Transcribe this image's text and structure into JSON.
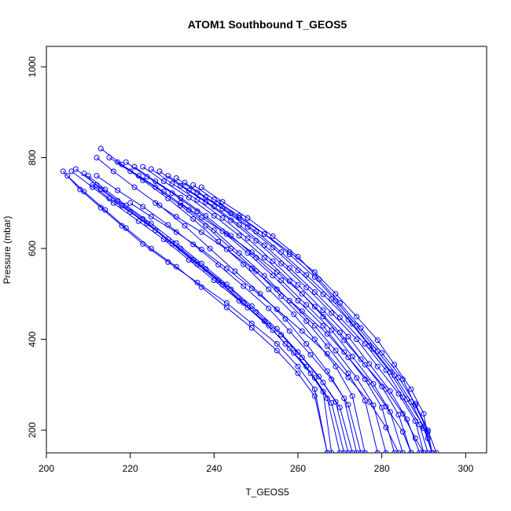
{
  "chart_data": {
    "type": "line",
    "title": "ATOM1 Southbound T_GEOS5",
    "xlabel": "T_GEOS5",
    "ylabel": "Pressure (mbar)",
    "xlim": [
      200,
      305
    ],
    "ylim": [
      1045,
      150
    ],
    "y_reversed": true,
    "x_ticks": [
      200,
      220,
      240,
      260,
      280,
      300
    ],
    "y_ticks": [
      200,
      400,
      600,
      800,
      1000
    ],
    "grid": false,
    "legend": "none",
    "color": "#0000ff",
    "marker": "open-circle",
    "series": [
      {
        "x": [
          204,
          208,
          213,
          218,
          223,
          229,
          236,
          243,
          249,
          255,
          260,
          264,
          267
        ],
        "y": [
          770,
          730,
          690,
          650,
          610,
          570,
          525,
          480,
          435,
          390,
          340,
          290,
          150
        ]
      },
      {
        "x": [
          205,
          209,
          214,
          219,
          225,
          231,
          237,
          243,
          249,
          255,
          260,
          264,
          267
        ],
        "y": [
          760,
          725,
          685,
          645,
          600,
          560,
          515,
          470,
          425,
          375,
          325,
          275,
          150
        ]
      },
      {
        "x": [
          206,
          211,
          216,
          222,
          228,
          234,
          240,
          246,
          252,
          257,
          262,
          266,
          268
        ],
        "y": [
          770,
          735,
          700,
          660,
          620,
          575,
          530,
          485,
          440,
          390,
          340,
          285,
          150
        ]
      },
      {
        "x": [
          207,
          212,
          217,
          223,
          229,
          235,
          241,
          247,
          253,
          258,
          263,
          267,
          270
        ],
        "y": [
          775,
          740,
          705,
          665,
          620,
          575,
          530,
          480,
          430,
          380,
          325,
          270,
          150
        ]
      },
      {
        "x": [
          209,
          213,
          218,
          224,
          230,
          236,
          242,
          248,
          254,
          259,
          264,
          268,
          271
        ],
        "y": [
          765,
          730,
          695,
          655,
          610,
          565,
          520,
          470,
          420,
          370,
          315,
          260,
          150
        ]
      },
      {
        "x": [
          211,
          215,
          220,
          226,
          232,
          238,
          244,
          250,
          256,
          261,
          266,
          270,
          273
        ],
        "y": [
          740,
          710,
          680,
          640,
          600,
          555,
          510,
          460,
          410,
          360,
          305,
          250,
          150
        ]
      },
      {
        "x": [
          212,
          216,
          221,
          227,
          233,
          239,
          245,
          251,
          257,
          262,
          267,
          271,
          274
        ],
        "y": [
          800,
          770,
          735,
          695,
          650,
          600,
          550,
          500,
          445,
          390,
          330,
          270,
          150
        ]
      },
      {
        "x": [
          213,
          218,
          223,
          229,
          235,
          241,
          247,
          253,
          259,
          264,
          269,
          273,
          276
        ],
        "y": [
          820,
          785,
          750,
          710,
          665,
          615,
          565,
          510,
          455,
          400,
          340,
          275,
          150
        ]
      },
      {
        "x": [
          215,
          220,
          226,
          232,
          238,
          244,
          250,
          256,
          262,
          267,
          272,
          276,
          279
        ],
        "y": [
          800,
          770,
          735,
          695,
          650,
          600,
          550,
          495,
          440,
          385,
          325,
          265,
          150
        ]
      },
      {
        "x": [
          217,
          222,
          228,
          234,
          240,
          246,
          252,
          258,
          264,
          269,
          274,
          278,
          281
        ],
        "y": [
          790,
          760,
          725,
          685,
          640,
          590,
          540,
          485,
          430,
          375,
          315,
          255,
          150
        ]
      },
      {
        "x": [
          219,
          224,
          230,
          236,
          242,
          248,
          254,
          260,
          266,
          271,
          276,
          280,
          283
        ],
        "y": [
          790,
          758,
          722,
          682,
          638,
          590,
          540,
          485,
          430,
          372,
          312,
          250,
          150
        ]
      },
      {
        "x": [
          221,
          226,
          232,
          238,
          244,
          250,
          256,
          262,
          268,
          273,
          278,
          282,
          285
        ],
        "y": [
          780,
          748,
          712,
          672,
          628,
          580,
          530,
          476,
          420,
          362,
          302,
          240,
          150
        ]
      },
      {
        "x": [
          223,
          228,
          234,
          240,
          246,
          252,
          258,
          264,
          270,
          275,
          280,
          284,
          287
        ],
        "y": [
          780,
          748,
          712,
          672,
          628,
          580,
          528,
          472,
          415,
          356,
          296,
          234,
          150
        ]
      },
      {
        "x": [
          225,
          230,
          236,
          242,
          248,
          254,
          260,
          266,
          272,
          277,
          282,
          286,
          289
        ],
        "y": [
          775,
          743,
          707,
          667,
          622,
          572,
          520,
          464,
          406,
          346,
          286,
          224,
          150
        ]
      },
      {
        "x": [
          227,
          232,
          238,
          244,
          250,
          256,
          262,
          268,
          274,
          279,
          284,
          288,
          290
        ],
        "y": [
          770,
          738,
          702,
          662,
          617,
          567,
          514,
          458,
          400,
          340,
          280,
          220,
          150
        ]
      },
      {
        "x": [
          229,
          234,
          240,
          246,
          252,
          258,
          264,
          270,
          276,
          281,
          285,
          289,
          291
        ],
        "y": [
          760,
          728,
          692,
          652,
          607,
          557,
          504,
          448,
          390,
          332,
          272,
          212,
          150
        ]
      },
      {
        "x": [
          231,
          236,
          242,
          248,
          254,
          260,
          266,
          272,
          277,
          282,
          286,
          290,
          292
        ],
        "y": [
          755,
          723,
          687,
          647,
          602,
          552,
          499,
          443,
          386,
          328,
          268,
          208,
          150
        ]
      },
      {
        "x": [
          233,
          238,
          244,
          250,
          256,
          262,
          268,
          273,
          278,
          283,
          287,
          290,
          292
        ],
        "y": [
          745,
          713,
          677,
          637,
          592,
          542,
          489,
          434,
          378,
          320,
          262,
          204,
          150
        ]
      },
      {
        "x": [
          235,
          240,
          246,
          252,
          258,
          264,
          269,
          274,
          279,
          284,
          288,
          291,
          293
        ],
        "y": [
          740,
          708,
          672,
          632,
          587,
          537,
          485,
          430,
          374,
          316,
          258,
          200,
          150
        ]
      },
      {
        "x": [
          237,
          242,
          248,
          254,
          260,
          265,
          270,
          275,
          280,
          285,
          288,
          291,
          292
        ],
        "y": [
          735,
          703,
          667,
          627,
          582,
          532,
          480,
          425,
          370,
          312,
          254,
          196,
          150
        ]
      },
      {
        "x": [
          210,
          214,
          219,
          225,
          231,
          237,
          243,
          249,
          255,
          260,
          265,
          269,
          272
        ],
        "y": [
          760,
          730,
          695,
          655,
          612,
          567,
          521,
          473,
          423,
          372,
          318,
          262,
          150
        ]
      },
      {
        "x": [
          212,
          217,
          223,
          229,
          235,
          241,
          247,
          253,
          258,
          263,
          268,
          272,
          275
        ],
        "y": [
          760,
          728,
          692,
          652,
          609,
          564,
          517,
          468,
          418,
          366,
          312,
          256,
          150
        ]
      },
      {
        "x": [
          220,
          225,
          231,
          237,
          243,
          249,
          255,
          261,
          267,
          272,
          277,
          281,
          284
        ],
        "y": [
          700,
          670,
          636,
          598,
          556,
          512,
          466,
          418,
          368,
          316,
          262,
          206,
          150
        ]
      },
      {
        "x": [
          226,
          231,
          237,
          243,
          249,
          255,
          261,
          267,
          272,
          277,
          281,
          285,
          287
        ],
        "y": [
          700,
          670,
          636,
          598,
          556,
          510,
          462,
          412,
          360,
          306,
          252,
          196,
          150
        ]
      },
      {
        "x": [
          232,
          237,
          243,
          249,
          255,
          261,
          266,
          271,
          276,
          281,
          285,
          288,
          290
        ],
        "y": [
          700,
          668,
          632,
          592,
          548,
          500,
          450,
          398,
          344,
          290,
          236,
          182,
          150
        ]
      },
      {
        "x": [
          241,
          246,
          252,
          258,
          264,
          269,
          274,
          279,
          283,
          287,
          290,
          291,
          292
        ],
        "y": [
          700,
          668,
          632,
          592,
          548,
          500,
          450,
          398,
          344,
          290,
          236,
          182,
          150
        ]
      }
    ]
  }
}
